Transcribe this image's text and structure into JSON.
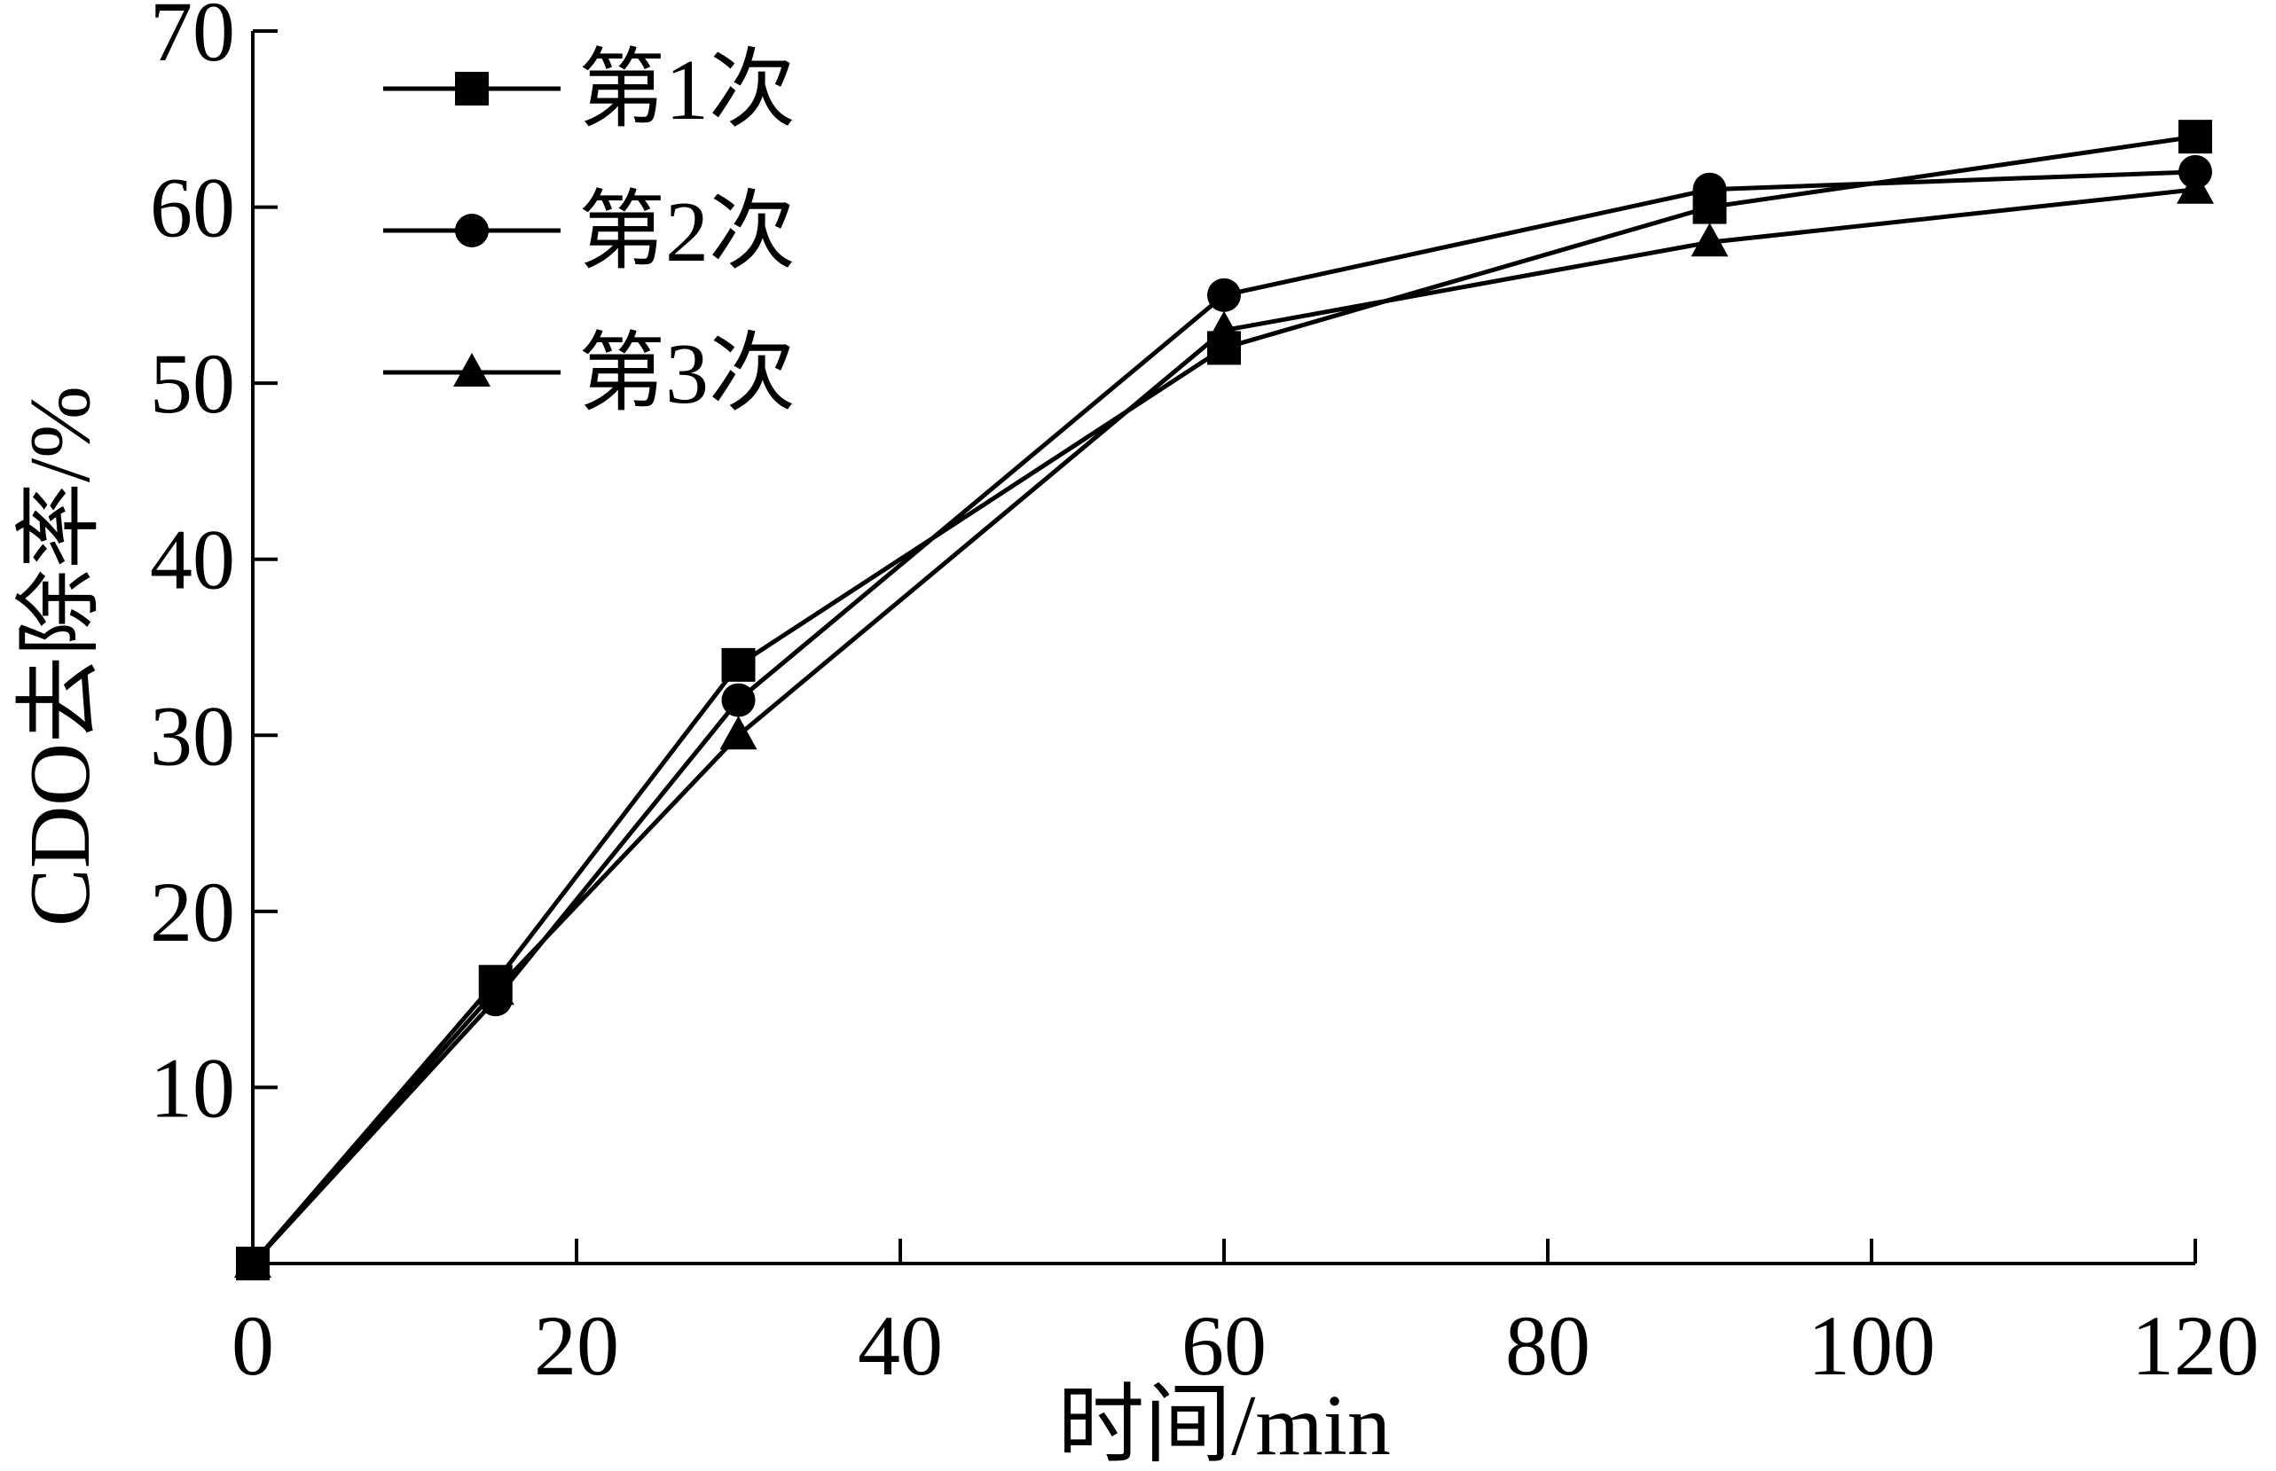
{
  "chart_data": {
    "type": "line",
    "title": "",
    "xlabel": "时间/min",
    "ylabel": "CDO去除率/%",
    "xlim": [
      0,
      120
    ],
    "ylim": [
      0,
      70
    ],
    "x_ticks": [
      0,
      20,
      40,
      60,
      80,
      100,
      120
    ],
    "y_ticks": [
      10,
      20,
      30,
      40,
      50,
      60,
      70
    ],
    "grid": false,
    "legend_position": "top-left",
    "x": [
      0,
      15,
      30,
      60,
      90,
      120
    ],
    "series": [
      {
        "name": "第1次",
        "marker": "square",
        "color": "#000000",
        "values": [
          0,
          16,
          34,
          52,
          60,
          64
        ]
      },
      {
        "name": "第2次",
        "marker": "circle",
        "color": "#000000",
        "values": [
          0,
          15,
          32,
          55,
          61,
          62
        ]
      },
      {
        "name": "第3次",
        "marker": "triangle",
        "color": "#000000",
        "values": [
          0,
          15.5,
          30,
          53,
          58,
          61
        ]
      }
    ]
  }
}
